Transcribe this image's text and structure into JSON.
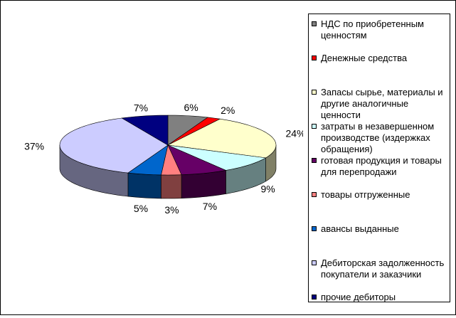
{
  "chart_data": {
    "type": "pie",
    "three_d": true,
    "title": "",
    "legend_position": "right",
    "value_format": "percent",
    "categories": [
      "НДС по приобретенным ценностям",
      "Денежные средства",
      "Запасы сырье, материалы и другие аналогичные ценности",
      "затраты в незавершенном производстве (издержках обращения)",
      "готовая продукция и товары для перепродажи",
      "товары отгруженные",
      "авансы выданные",
      "Дебиторская задолженность покупатели и заказчики",
      "прочие дебиторы"
    ],
    "values": [
      6,
      2,
      24,
      9,
      7,
      3,
      5,
      37,
      7
    ],
    "data_labels": [
      "6%",
      "2%",
      "24%",
      "9%",
      "7%",
      "3%",
      "5%",
      "37%",
      "7%"
    ],
    "colors": [
      "#808080",
      "#FF0000",
      "#FFFFCC",
      "#CCFFFF",
      "#660066",
      "#FF8080",
      "#0066CC",
      "#CCCCFF",
      "#000080"
    ]
  }
}
